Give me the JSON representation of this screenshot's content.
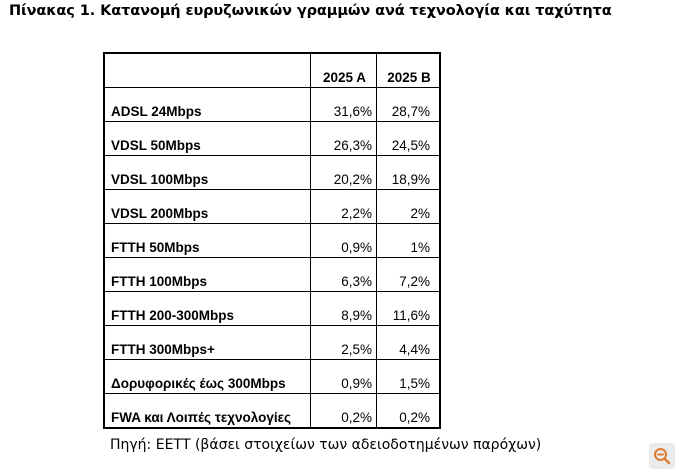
{
  "title": "Πίνακας 1. Κατανομή ευρυζωνικών γραμμών ανά τεχνολογία και ταχύτητα",
  "table": {
    "columns": [
      "2025 A",
      "2025 B"
    ],
    "rows": [
      {
        "label": "ADSL 24Mbps",
        "a": "31,6%",
        "b": "28,7%"
      },
      {
        "label": "VDSL 50Mbps",
        "a": "26,3%",
        "b": "24,5%"
      },
      {
        "label": "VDSL 100Mbps",
        "a": "20,2%",
        "b": "18,9%"
      },
      {
        "label": "VDSL 200Mbps",
        "a": "2,2%",
        "b": "2%"
      },
      {
        "label": "FTTH 50Mbps",
        "a": "0,9%",
        "b": "1%"
      },
      {
        "label": "FTTH 100Mbps",
        "a": "6,3%",
        "b": "7,2%"
      },
      {
        "label": "FTTH 200-300Mbps",
        "a": "8,9%",
        "b": "11,6%"
      },
      {
        "label": "FTTH 300Mbps+",
        "a": "2,5%",
        "b": "4,4%"
      },
      {
        "label": "Δορυφορικές έως 300Mbps",
        "a": "0,9%",
        "b": "1,5%"
      },
      {
        "label": "FWA και Λοιπές τεχνολογίες",
        "a": "0,2%",
        "b": "0,2%"
      }
    ]
  },
  "source": "Πηγή: ΕΕΤΤ (βάσει στοιχείων των αδειοδοτημένων παρόχων)",
  "zoom_icon": "zoom-out-icon",
  "colors": {
    "zoom_bg": "#e9ecef",
    "zoom_fg": "#e07a2e"
  }
}
